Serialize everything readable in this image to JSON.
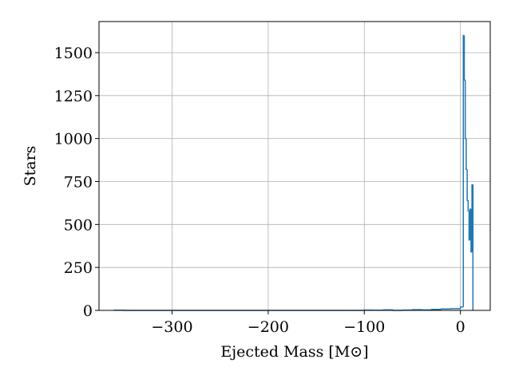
{
  "chart_data": {
    "type": "histogram",
    "xlabel": "Ejected Mass [M⊙]",
    "ylabel": "Stars",
    "bins": [
      -360,
      -350,
      -340,
      -330,
      -320,
      -310,
      -300,
      -290,
      -280,
      -270,
      -260,
      -250,
      -240,
      -230,
      -220,
      -210,
      -200,
      -190,
      -180,
      -170,
      -160,
      -150,
      -140,
      -130,
      -120,
      -110,
      -100,
      -90,
      -80,
      -70,
      -60,
      -50,
      -40,
      -30,
      -20,
      -10,
      0,
      1,
      2,
      3,
      4,
      5,
      6,
      7,
      8,
      9,
      10,
      11,
      12,
      13
    ],
    "values": [
      1,
      0,
      0,
      0,
      0,
      0,
      0,
      0,
      0,
      0,
      0,
      0,
      0,
      0,
      0,
      0,
      0,
      0,
      0,
      0,
      0,
      0,
      0,
      0,
      0,
      0,
      2,
      1,
      3,
      0,
      2,
      4,
      3,
      6,
      8,
      10,
      20,
      20,
      20,
      1600,
      1340,
      1000,
      820,
      640,
      580,
      410,
      590,
      340,
      730
    ],
    "color": "#1f77b4",
    "xlim": [
      -376,
      31
    ],
    "ylim": [
      0,
      1681
    ],
    "xticks": [
      {
        "value": -300,
        "label": "−300"
      },
      {
        "value": -200,
        "label": "−200"
      },
      {
        "value": -100,
        "label": "−100"
      },
      0
    ],
    "yticks": [
      0,
      250,
      500,
      750,
      1000,
      1250,
      1500
    ],
    "grid": true
  }
}
